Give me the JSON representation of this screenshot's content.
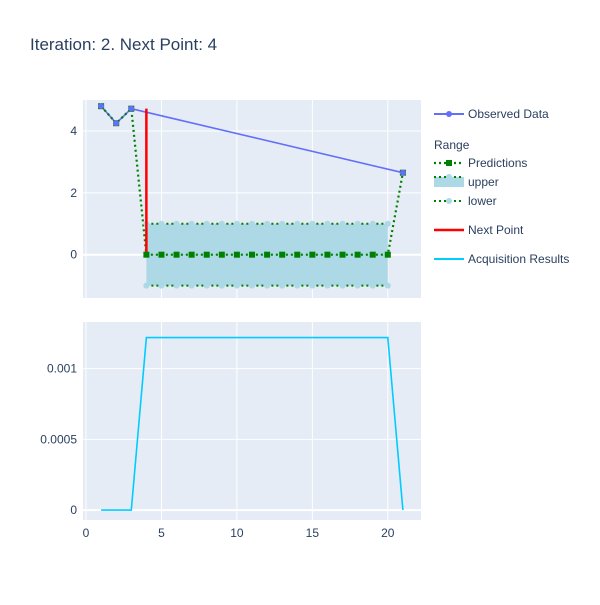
{
  "chart_data": {
    "type": "line",
    "title": "Iteration: 2. Next Point: 4",
    "colors": {
      "observed": "#636efa",
      "predictions": "#008000",
      "band_fill": "#add8e6",
      "band_line": "#008000",
      "band_marker": "#add8e6",
      "next_point": "#ff0000",
      "acquisition": "#00ccff",
      "plot_bg": "#e5ecf6",
      "grid": "#ffffff",
      "tick_text": "#2a3f5f"
    },
    "legend": {
      "placement": "right",
      "group_title": "Range",
      "items": [
        {
          "id": "observed",
          "label": "Observed Data"
        },
        {
          "id": "predictions",
          "label": "Predictions"
        },
        {
          "id": "upper",
          "label": "upper"
        },
        {
          "id": "lower",
          "label": "lower"
        },
        {
          "id": "next",
          "label": "Next Point"
        },
        {
          "id": "acq",
          "label": "Acquisition Results"
        }
      ]
    },
    "subplots": [
      {
        "id": "top",
        "xlim": [
          -0.2,
          22.2
        ],
        "ylim": [
          -1.4,
          5.0
        ],
        "yticks": [
          0,
          2,
          4
        ],
        "ytick_labels": [
          "0",
          "2",
          "4"
        ],
        "xgrid": [
          0,
          5,
          10,
          15,
          20
        ],
        "series": [
          {
            "name": "Observed Data",
            "kind": "line+markers",
            "x": [
              1,
              2,
              3,
              21
            ],
            "y": [
              4.8,
              4.25,
              4.72,
              2.65
            ]
          },
          {
            "name": "Predictions",
            "kind": "dotted+square-markers",
            "x": [
              1,
              2,
              3,
              4,
              5,
              6,
              7,
              8,
              9,
              10,
              11,
              12,
              13,
              14,
              15,
              16,
              17,
              18,
              19,
              20,
              21
            ],
            "y": [
              4.8,
              4.25,
              4.72,
              0,
              0,
              0,
              0,
              0,
              0,
              0,
              0,
              0,
              0,
              0,
              0,
              0,
              0,
              0,
              0,
              0,
              2.65
            ]
          },
          {
            "name": "upper",
            "kind": "dotted+circle-markers",
            "x": [
              4,
              5,
              6,
              7,
              8,
              9,
              10,
              11,
              12,
              13,
              14,
              15,
              16,
              17,
              18,
              19,
              20
            ],
            "y": [
              1,
              1,
              1,
              1,
              1,
              1,
              1,
              1,
              1,
              1,
              1,
              1,
              1,
              1,
              1,
              1,
              1
            ]
          },
          {
            "name": "lower",
            "kind": "dotted+circle-markers",
            "x": [
              4,
              5,
              6,
              7,
              8,
              9,
              10,
              11,
              12,
              13,
              14,
              15,
              16,
              17,
              18,
              19,
              20
            ],
            "y": [
              -1,
              -1,
              -1,
              -1,
              -1,
              -1,
              -1,
              -1,
              -1,
              -1,
              -1,
              -1,
              -1,
              -1,
              -1,
              -1,
              -1
            ]
          },
          {
            "name": "Next Point",
            "kind": "vline",
            "x": [
              4,
              4
            ],
            "y": [
              0,
              4.72
            ]
          }
        ]
      },
      {
        "id": "bottom",
        "xlim": [
          -0.2,
          22.2
        ],
        "ylim": [
          -7e-05,
          0.00133
        ],
        "yticks": [
          0,
          0.0005,
          0.001
        ],
        "ytick_labels": [
          "0",
          "0.0005",
          "0.001"
        ],
        "xticks": [
          0,
          5,
          10,
          15,
          20
        ],
        "xtick_labels": [
          "0",
          "5",
          "10",
          "15",
          "20"
        ],
        "series": [
          {
            "name": "Acquisition Results",
            "kind": "line",
            "x": [
              1,
              2,
              3,
              4,
              5,
              6,
              7,
              8,
              9,
              10,
              11,
              12,
              13,
              14,
              15,
              16,
              17,
              18,
              19,
              20,
              21
            ],
            "y": [
              0,
              0,
              0,
              0.00122,
              0.00122,
              0.00122,
              0.00122,
              0.00122,
              0.00122,
              0.00122,
              0.00122,
              0.00122,
              0.00122,
              0.00122,
              0.00122,
              0.00122,
              0.00122,
              0.00122,
              0.00122,
              0.00122,
              0
            ]
          }
        ]
      }
    ]
  }
}
